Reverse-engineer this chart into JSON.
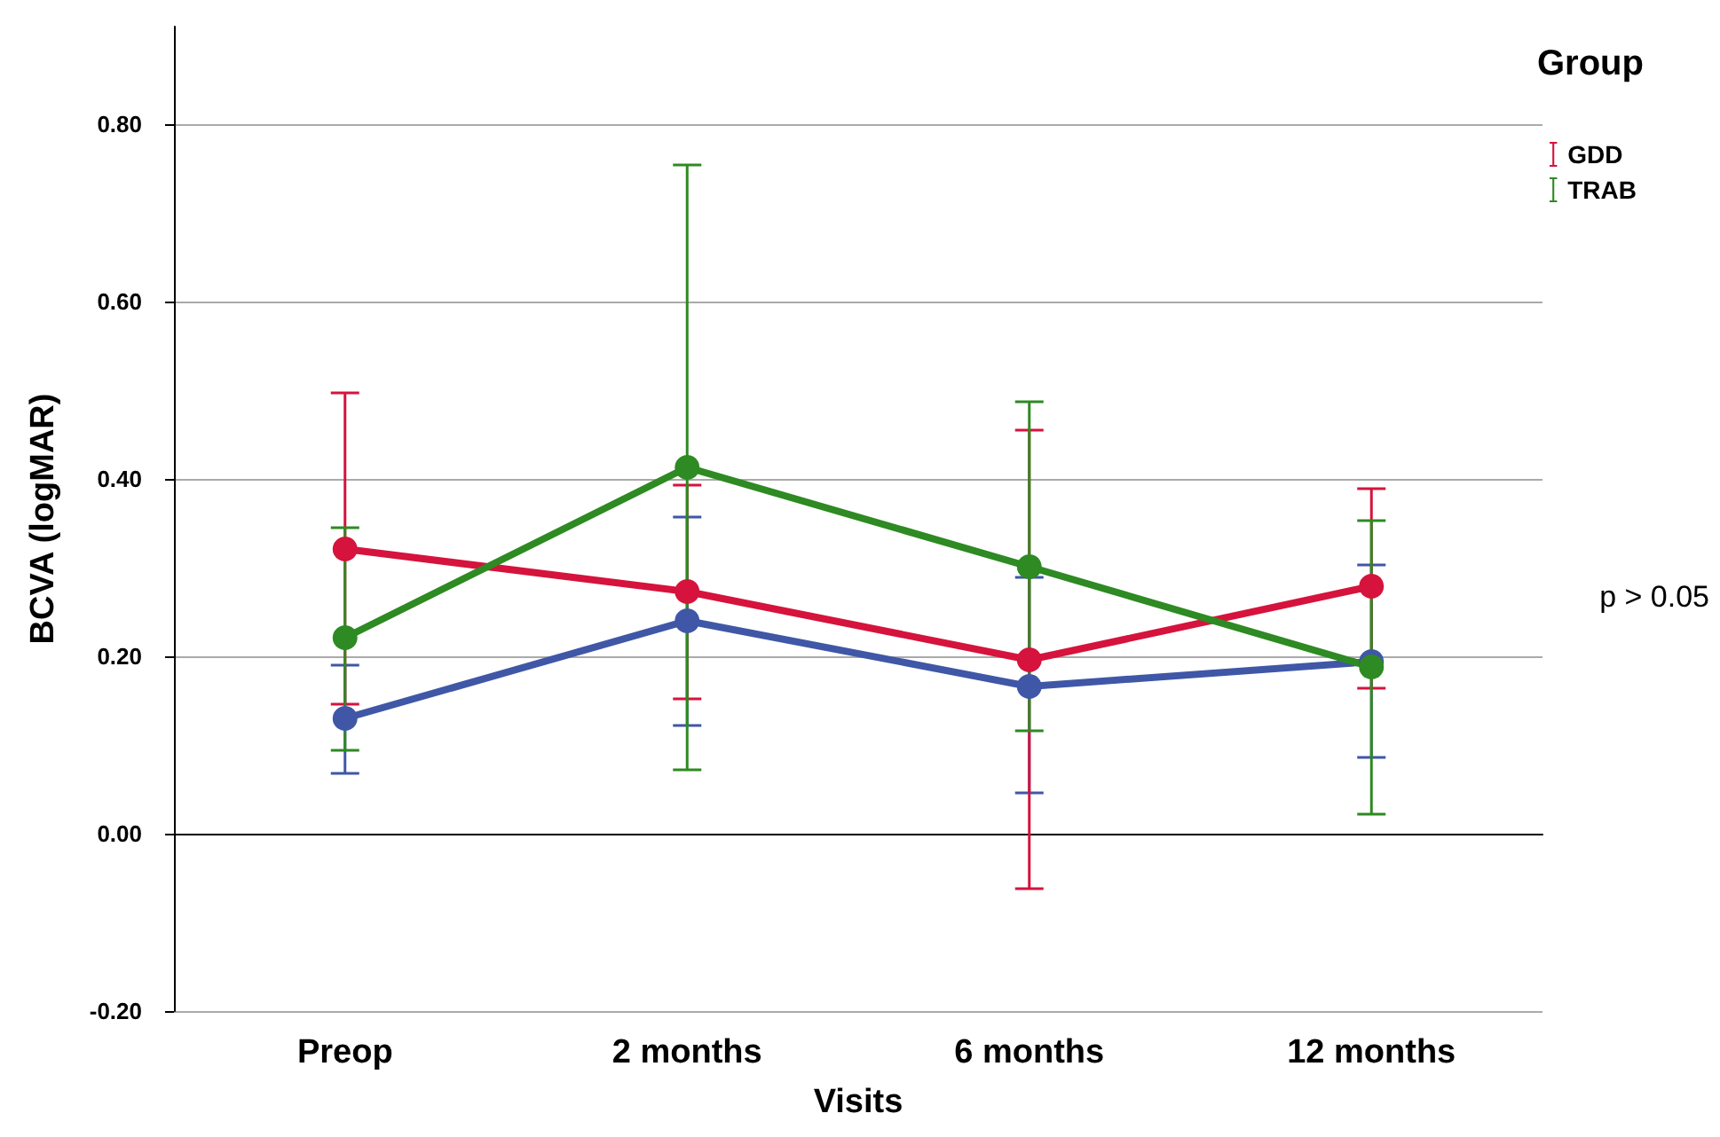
{
  "chart_data": {
    "type": "line",
    "xlabel": "Visits",
    "ylabel": "BCVA (logMAR)",
    "legend_title": "Group",
    "legend": "top right",
    "grid": "y",
    "marker": "circle",
    "line_style": "solid",
    "categories": [
      "Preop",
      "2 months",
      "6 months",
      "12 months"
    ],
    "ylim": [
      -0.2,
      0.91
    ],
    "yticks": [
      {
        "value": -0.2,
        "label": "-0.20"
      },
      {
        "value": 0,
        "label": "0.00"
      },
      {
        "value": 0.2,
        "label": "0.20"
      },
      {
        "value": 0.4,
        "label": "0.40"
      },
      {
        "value": 0.6,
        "label": "0.60"
      },
      {
        "value": 0.8,
        "label": "0.80"
      }
    ],
    "series": [
      {
        "color": "#3f57a6",
        "values": [
          0.13,
          0.24,
          0.166,
          0.194
        ],
        "errors": [
          [
            0.068,
            0.19
          ],
          [
            0.122,
            0.357
          ],
          [
            0.046,
            0.289
          ],
          [
            0.086,
            0.303
          ]
        ]
      },
      {
        "name": "GDD",
        "color": "#d5133c",
        "values": [
          0.321,
          0.273,
          0.196,
          0.279
        ],
        "errors": [
          [
            0.146,
            0.497
          ],
          [
            0.152,
            0.393
          ],
          [
            -0.062,
            0.455
          ],
          [
            0.164,
            0.389
          ]
        ]
      },
      {
        "name": "TRAB",
        "color": "#2e8a22",
        "values": [
          0.221,
          0.413,
          0.301,
          0.188
        ],
        "errors": [
          [
            0.094,
            0.345
          ],
          [
            0.072,
            0.754
          ],
          [
            0.116,
            0.487
          ],
          [
            0.022,
            0.353
          ]
        ]
      }
    ],
    "annotations": [
      "p > 0.05"
    ]
  }
}
